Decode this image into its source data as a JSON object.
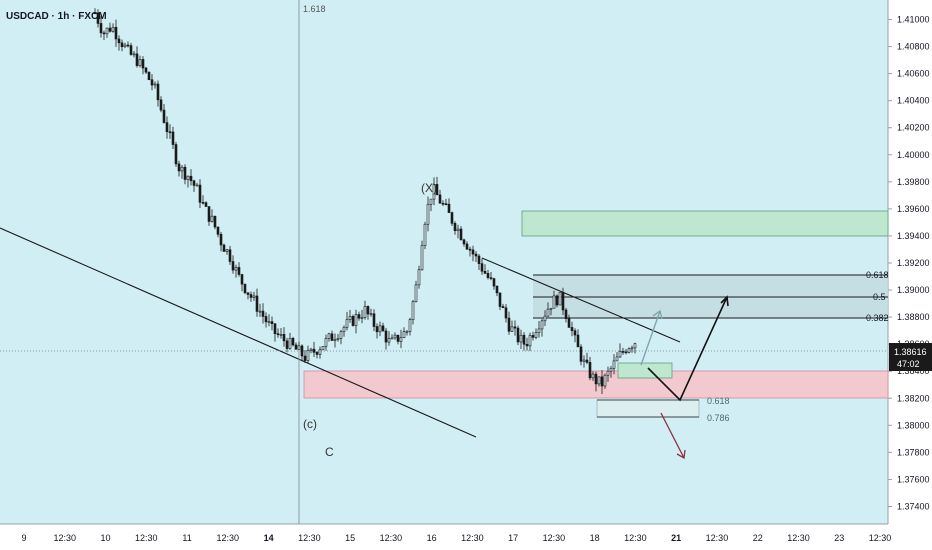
{
  "chart_data": {
    "type": "candlestick",
    "symbol_label": "USDCAD · 1h · FXCM",
    "y_axis": {
      "range": [
        1.373,
        1.411
      ],
      "ticks": [
        "1.41000",
        "1.40800",
        "1.40600",
        "1.40400",
        "1.40200",
        "1.40000",
        "1.39800",
        "1.39600",
        "1.39400",
        "1.39200",
        "1.39000",
        "1.38800",
        "1.38600",
        "1.38400",
        "1.38200",
        "1.38000",
        "1.37800",
        "1.37600",
        "1.37400"
      ]
    },
    "x_axis": {
      "ticks": [
        "9",
        "12:30",
        "10",
        "12:30",
        "11",
        "12:30",
        "14",
        "12:30",
        "15",
        "12:30",
        "16",
        "12:30",
        "17",
        "12:30",
        "18",
        "12:30",
        "21",
        "12:30",
        "22",
        "12:30",
        "23",
        "12:30"
      ]
    },
    "current_price": {
      "value": 1.38616,
      "label": "1.38616",
      "countdown": "47:02"
    },
    "vertical_marker_label": "1.618",
    "fib_levels": [
      {
        "label": "0.618",
        "price": 1.3916
      },
      {
        "label": "0.5",
        "price": 1.3901
      },
      {
        "label": "0.382",
        "price": 1.3884
      }
    ],
    "lower_fib_labels": [
      "0.618",
      "0.786"
    ],
    "wave_labels": [
      "(X)",
      "(c)",
      "C"
    ],
    "close_path": [
      1.4105,
      1.409,
      1.4095,
      1.4085,
      1.4075,
      1.407,
      1.406,
      1.405,
      1.403,
      1.401,
      1.399,
      1.3985,
      1.3975,
      1.396,
      1.395,
      1.3935,
      1.3925,
      1.391,
      1.39,
      1.389,
      1.388,
      1.387,
      1.3865,
      1.386,
      1.3855,
      1.385,
      1.3855,
      1.386,
      1.3865,
      1.387,
      1.3875,
      1.388,
      1.3885,
      1.3875,
      1.387,
      1.386,
      1.3865,
      1.387,
      1.39,
      1.395,
      1.3975,
      1.3965,
      1.3955,
      1.3945,
      1.3935,
      1.3925,
      1.3915,
      1.3905,
      1.389,
      1.3875,
      1.3865,
      1.386,
      1.387,
      1.388,
      1.389,
      1.3895,
      1.388,
      1.386,
      1.3845,
      1.3835,
      1.383,
      1.384,
      1.385,
      1.3858,
      1.3862
    ],
    "colors": {
      "background": "#d2eef5",
      "up": "#1a1a1a",
      "down": "#1a1a1a",
      "supply_zone": "#bfe6cf",
      "demand_zone": "#f3c9d0",
      "fib_box": "#c3dbe0",
      "projection_dark": "#111111",
      "projection_grey": "#7fa6ad",
      "projection_red": "#8b2f3f"
    }
  }
}
